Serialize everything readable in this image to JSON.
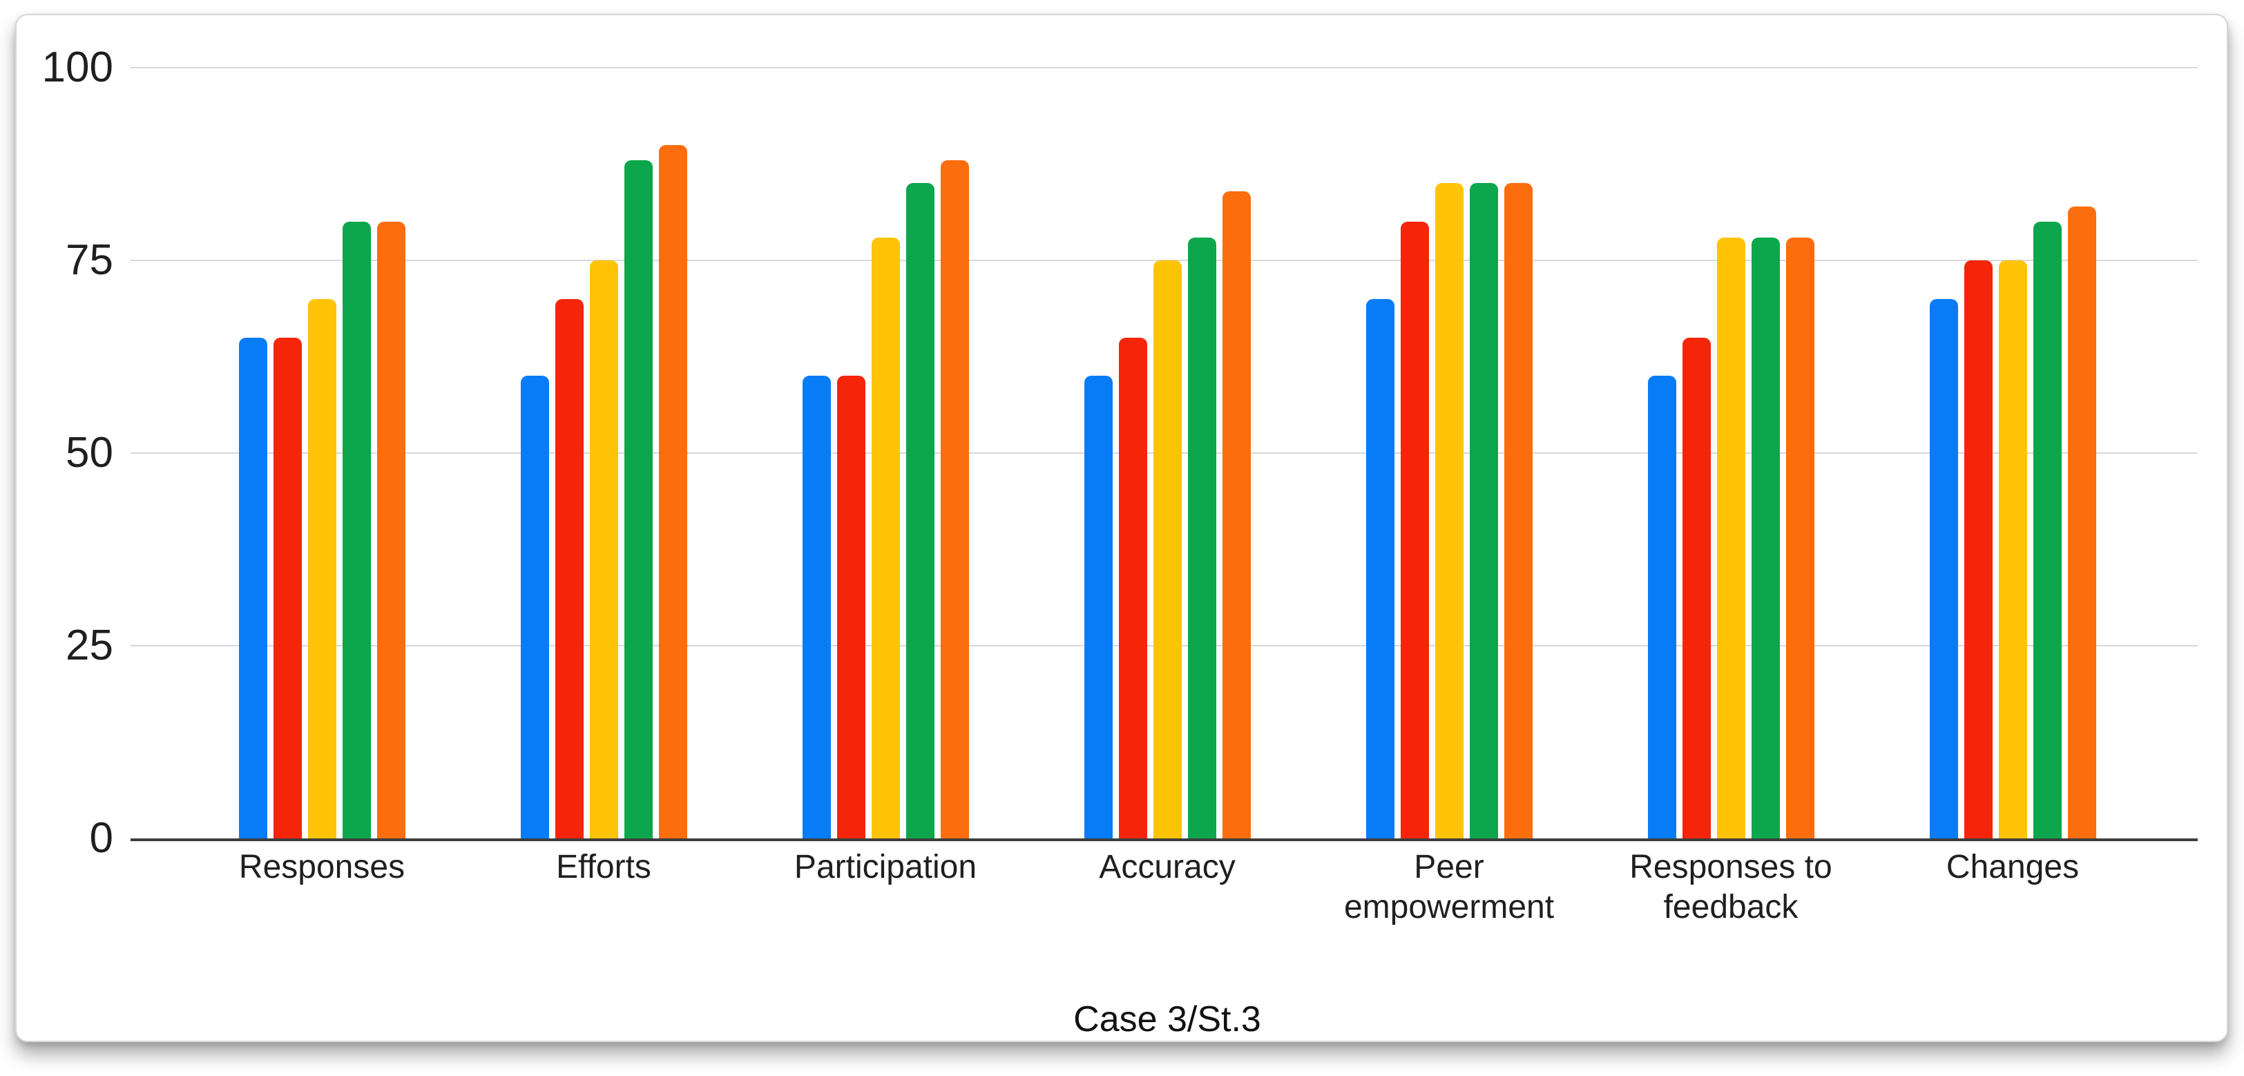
{
  "chart_data": {
    "type": "bar",
    "title": "Case 3/St.3",
    "categories": [
      "Responses",
      "Efforts",
      "Participation",
      "Accuracy",
      "Peer empowerment",
      "Responses to feedback",
      "Changes"
    ],
    "series": [
      {
        "color_name": "blue",
        "color": "#087cf7",
        "values": [
          65,
          60,
          60,
          60,
          70,
          60,
          70
        ]
      },
      {
        "color_name": "red",
        "color": "#f5250a",
        "values": [
          65,
          70,
          60,
          65,
          80,
          65,
          75
        ]
      },
      {
        "color_name": "yellow",
        "color": "#ffc308",
        "values": [
          70,
          75,
          78,
          75,
          85,
          78,
          75
        ]
      },
      {
        "color_name": "green",
        "color": "#0ca64c",
        "values": [
          80,
          88,
          85,
          78,
          85,
          78,
          80
        ]
      },
      {
        "color_name": "orange",
        "color": "#fb6d0d",
        "values": [
          80,
          90,
          88,
          84,
          85,
          78,
          82
        ]
      }
    ],
    "y_ticks": [
      100,
      75,
      50,
      25,
      0
    ],
    "ylim": [
      0,
      100
    ],
    "grid": true,
    "legend": "none",
    "gridline_color": "#d9d9d9",
    "axis_color": "#3d3d3d",
    "text_color": "#1f1f1f"
  }
}
